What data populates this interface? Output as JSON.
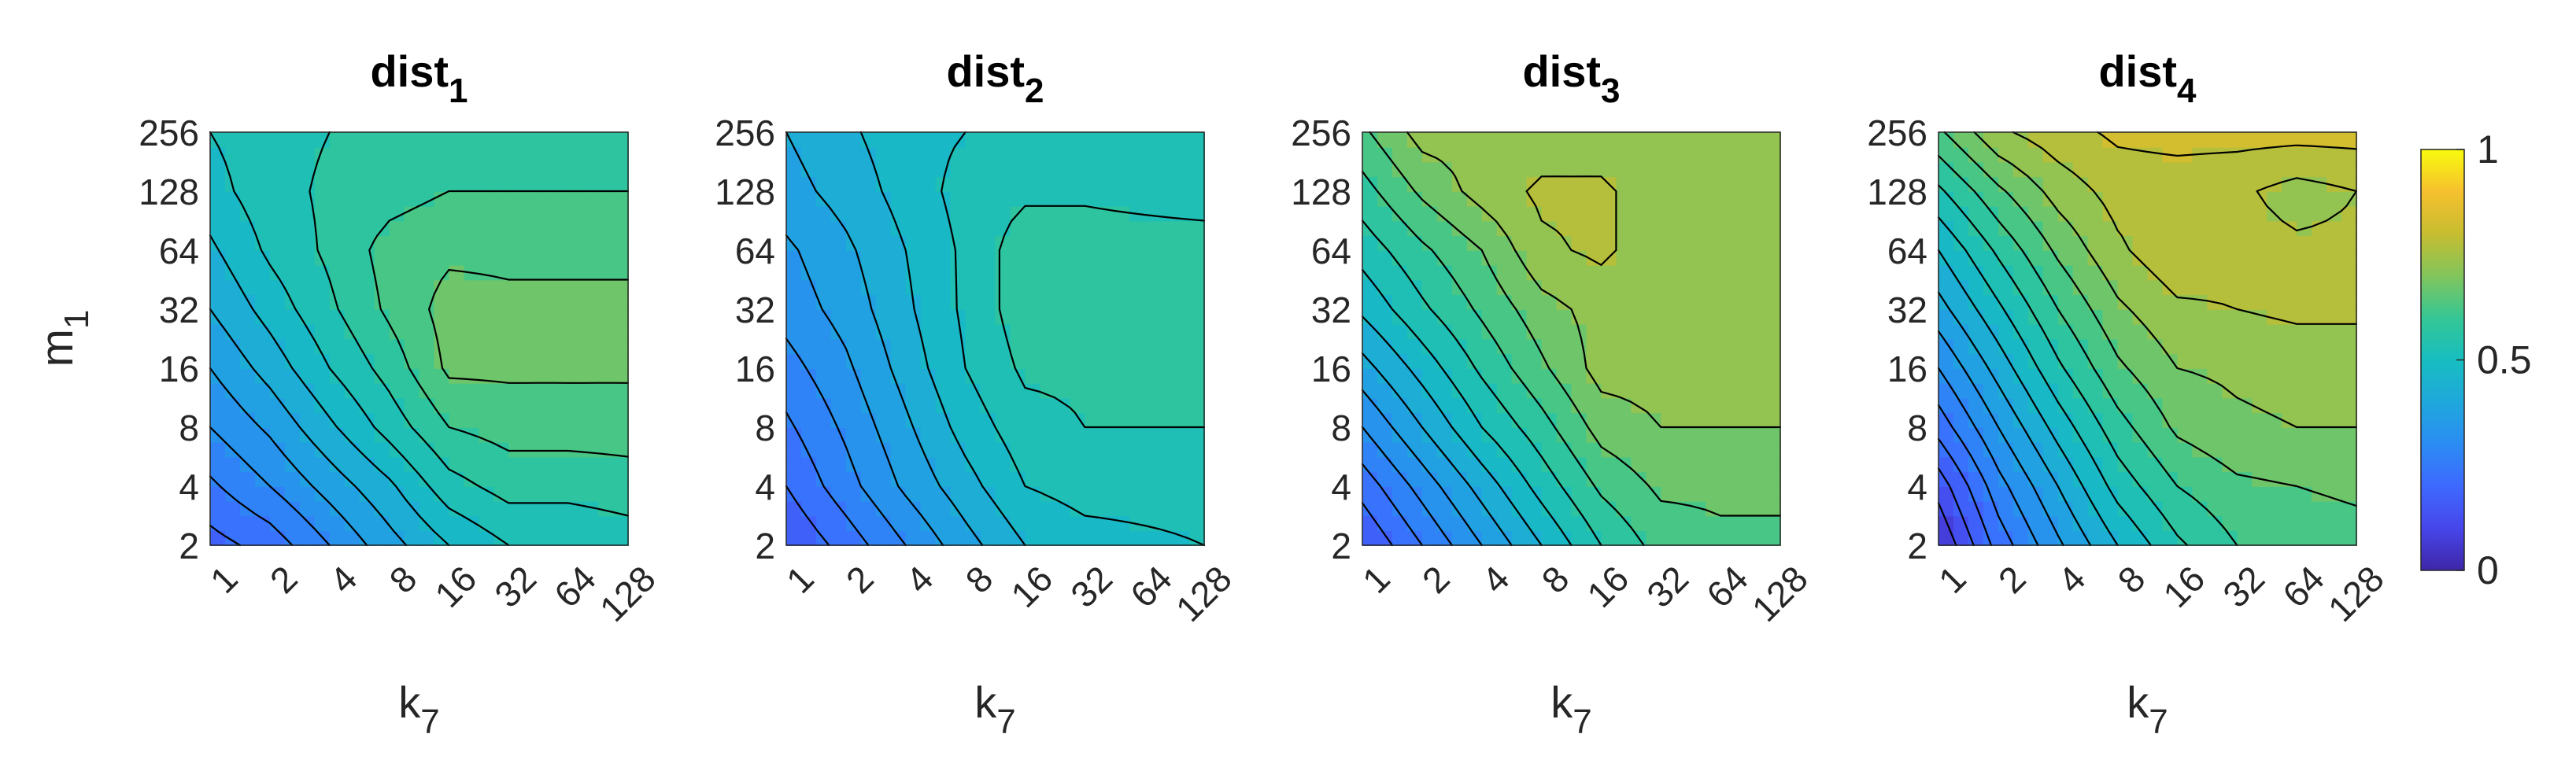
{
  "chart_data": {
    "type": "contour",
    "colormap": "parula",
    "colorbar": {
      "ticks": [
        "0",
        "0.5",
        "1"
      ],
      "range": [
        0,
        1
      ]
    },
    "x_categories": [
      "1",
      "2",
      "4",
      "8",
      "16",
      "32",
      "64",
      "128"
    ],
    "y_categories": [
      "2",
      "4",
      "8",
      "16",
      "32",
      "64",
      "128",
      "256"
    ],
    "xlabel": {
      "main": "k",
      "sub": "7"
    },
    "ylabel": {
      "main": "m",
      "sub": "1"
    },
    "panels": [
      {
        "title": {
          "main": "dist",
          "sub": "1"
        },
        "z": [
          [
            0.18,
            0.22,
            0.3,
            0.38,
            0.45,
            0.5,
            0.5,
            0.52
          ],
          [
            0.24,
            0.3,
            0.37,
            0.44,
            0.53,
            0.57,
            0.57,
            0.58
          ],
          [
            0.3,
            0.36,
            0.44,
            0.52,
            0.6,
            0.62,
            0.62,
            0.62
          ],
          [
            0.35,
            0.42,
            0.5,
            0.57,
            0.66,
            0.66,
            0.66,
            0.66
          ],
          [
            0.4,
            0.47,
            0.54,
            0.61,
            0.67,
            0.66,
            0.66,
            0.66
          ],
          [
            0.44,
            0.51,
            0.56,
            0.62,
            0.64,
            0.64,
            0.64,
            0.64
          ],
          [
            0.48,
            0.53,
            0.56,
            0.58,
            0.6,
            0.6,
            0.6,
            0.6
          ],
          [
            0.5,
            0.53,
            0.55,
            0.56,
            0.56,
            0.56,
            0.56,
            0.56
          ]
        ]
      },
      {
        "title": {
          "main": "dist",
          "sub": "2"
        },
        "z": [
          [
            0.15,
            0.22,
            0.3,
            0.38,
            0.45,
            0.48,
            0.49,
            0.5
          ],
          [
            0.2,
            0.28,
            0.36,
            0.43,
            0.5,
            0.52,
            0.52,
            0.52
          ],
          [
            0.24,
            0.31,
            0.39,
            0.47,
            0.53,
            0.55,
            0.55,
            0.55
          ],
          [
            0.28,
            0.34,
            0.42,
            0.5,
            0.56,
            0.56,
            0.56,
            0.56
          ],
          [
            0.32,
            0.37,
            0.44,
            0.51,
            0.58,
            0.58,
            0.58,
            0.58
          ],
          [
            0.34,
            0.39,
            0.45,
            0.51,
            0.58,
            0.58,
            0.58,
            0.58
          ],
          [
            0.38,
            0.42,
            0.47,
            0.52,
            0.54,
            0.54,
            0.53,
            0.52
          ],
          [
            0.4,
            0.44,
            0.48,
            0.5,
            0.5,
            0.5,
            0.5,
            0.5
          ]
        ]
      },
      {
        "title": {
          "main": "dist",
          "sub": "3"
        },
        "z": [
          [
            0.15,
            0.25,
            0.35,
            0.45,
            0.55,
            0.62,
            0.64,
            0.64
          ],
          [
            0.22,
            0.32,
            0.42,
            0.52,
            0.61,
            0.66,
            0.66,
            0.66
          ],
          [
            0.3,
            0.4,
            0.5,
            0.58,
            0.67,
            0.7,
            0.7,
            0.7
          ],
          [
            0.38,
            0.47,
            0.56,
            0.64,
            0.72,
            0.72,
            0.72,
            0.72
          ],
          [
            0.46,
            0.54,
            0.61,
            0.68,
            0.72,
            0.72,
            0.72,
            0.72
          ],
          [
            0.52,
            0.59,
            0.65,
            0.74,
            0.76,
            0.72,
            0.71,
            0.71
          ],
          [
            0.58,
            0.66,
            0.72,
            0.76,
            0.76,
            0.72,
            0.71,
            0.71
          ],
          [
            0.64,
            0.72,
            0.72,
            0.72,
            0.72,
            0.72,
            0.72,
            0.72
          ]
        ]
      },
      {
        "title": {
          "main": "dist",
          "sub": "4"
        },
        "z": [
          [
            0.05,
            0.22,
            0.34,
            0.45,
            0.54,
            0.6,
            0.62,
            0.63
          ],
          [
            0.12,
            0.28,
            0.4,
            0.52,
            0.6,
            0.64,
            0.65,
            0.66
          ],
          [
            0.22,
            0.35,
            0.47,
            0.58,
            0.66,
            0.69,
            0.7,
            0.7
          ],
          [
            0.3,
            0.42,
            0.54,
            0.64,
            0.7,
            0.71,
            0.72,
            0.72
          ],
          [
            0.38,
            0.49,
            0.6,
            0.69,
            0.74,
            0.75,
            0.76,
            0.76
          ],
          [
            0.45,
            0.56,
            0.66,
            0.74,
            0.79,
            0.77,
            0.76,
            0.76
          ],
          [
            0.54,
            0.64,
            0.72,
            0.77,
            0.77,
            0.76,
            0.73,
            0.75
          ],
          [
            0.64,
            0.74,
            0.78,
            0.81,
            0.82,
            0.82,
            0.82,
            0.82
          ]
        ]
      }
    ]
  }
}
